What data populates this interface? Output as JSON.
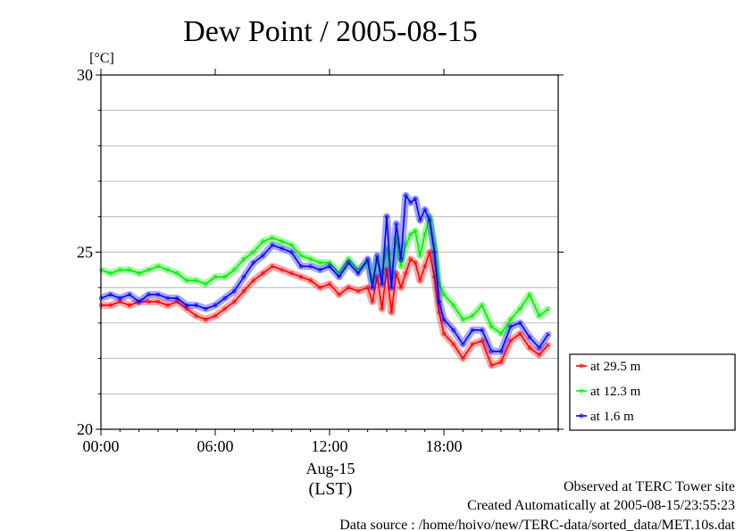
{
  "chart_data": {
    "type": "line",
    "title": "Dew Point / 2005-08-15",
    "ylabel": "[°C]",
    "xlabel": "(LST)",
    "date_label": "Aug-15",
    "ylim": [
      20,
      30
    ],
    "y_ticks": [
      "20",
      "25",
      "30"
    ],
    "x_range_hours": [
      0,
      24
    ],
    "x_ticks": [
      "00:00",
      "06:00",
      "12:00",
      "18:00"
    ],
    "grid": "horizontal",
    "legend_placement": "right",
    "series": [
      {
        "name": "at 29.5 m",
        "color": "#ff0000",
        "x": [
          0,
          0.5,
          1,
          1.5,
          2,
          2.5,
          3,
          3.5,
          4,
          4.5,
          5,
          5.5,
          6,
          6.5,
          7,
          7.5,
          8,
          8.5,
          9,
          9.5,
          10,
          10.5,
          11,
          11.5,
          12,
          12.5,
          13,
          13.5,
          14,
          14.25,
          14.5,
          14.75,
          15,
          15.25,
          15.5,
          15.75,
          16,
          16.25,
          16.5,
          16.75,
          17,
          17.25,
          17.5,
          17.75,
          18,
          18.5,
          19,
          19.5,
          20,
          20.5,
          21,
          21.5,
          22,
          22.5,
          23,
          23.5
        ],
        "values": [
          23.5,
          23.5,
          23.6,
          23.5,
          23.6,
          23.6,
          23.6,
          23.5,
          23.6,
          23.4,
          23.2,
          23.1,
          23.2,
          23.4,
          23.6,
          23.9,
          24.2,
          24.4,
          24.6,
          24.5,
          24.4,
          24.3,
          24.2,
          24.0,
          24.1,
          23.8,
          24.0,
          23.9,
          24.0,
          23.6,
          24.3,
          23.4,
          24.5,
          23.3,
          24.4,
          24.0,
          24.4,
          24.8,
          24.7,
          24.2,
          24.6,
          25.0,
          24.3,
          23.3,
          22.7,
          22.4,
          22.0,
          22.4,
          22.5,
          21.8,
          21.9,
          22.5,
          22.7,
          22.3,
          22.1,
          22.4
        ]
      },
      {
        "name": "at 12.3 m",
        "color": "#00ee00",
        "x": [
          0,
          0.5,
          1,
          1.5,
          2,
          2.5,
          3,
          3.5,
          4,
          4.5,
          5,
          5.5,
          6,
          6.5,
          7,
          7.5,
          8,
          8.5,
          9,
          9.5,
          10,
          10.5,
          11,
          11.5,
          12,
          12.5,
          13,
          13.5,
          14,
          14.25,
          14.5,
          14.75,
          15,
          15.25,
          15.5,
          15.75,
          16,
          16.25,
          16.5,
          16.75,
          17,
          17.25,
          17.5,
          17.75,
          18,
          18.5,
          19,
          19.5,
          20,
          20.5,
          21,
          21.5,
          22,
          22.5,
          23,
          23.5
        ],
        "values": [
          24.5,
          24.4,
          24.5,
          24.5,
          24.4,
          24.5,
          24.6,
          24.5,
          24.4,
          24.2,
          24.2,
          24.1,
          24.3,
          24.3,
          24.5,
          24.8,
          25.0,
          25.3,
          25.4,
          25.3,
          25.2,
          24.9,
          24.8,
          24.7,
          24.7,
          24.4,
          24.8,
          24.5,
          24.7,
          24.2,
          24.8,
          24.4,
          25.1,
          24.3,
          25.4,
          24.6,
          25.2,
          25.5,
          25.6,
          24.9,
          25.5,
          26.0,
          25.2,
          24.1,
          23.8,
          23.5,
          23.1,
          23.2,
          23.5,
          22.9,
          22.7,
          23.1,
          23.4,
          23.8,
          23.2,
          23.4
        ]
      },
      {
        "name": "at 1.6 m",
        "color": "#0000ff",
        "x": [
          0,
          0.5,
          1,
          1.5,
          2,
          2.5,
          3,
          3.5,
          4,
          4.5,
          5,
          5.5,
          6,
          6.5,
          7,
          7.5,
          8,
          8.5,
          9,
          9.5,
          10,
          10.5,
          11,
          11.5,
          12,
          12.5,
          13,
          13.5,
          14,
          14.25,
          14.5,
          14.75,
          15,
          15.25,
          15.5,
          15.75,
          16,
          16.25,
          16.5,
          16.75,
          17,
          17.25,
          17.5,
          17.75,
          18,
          18.5,
          19,
          19.5,
          20,
          20.5,
          21,
          21.5,
          22,
          22.5,
          23,
          23.5
        ],
        "values": [
          23.7,
          23.8,
          23.7,
          23.8,
          23.6,
          23.8,
          23.8,
          23.7,
          23.7,
          23.5,
          23.5,
          23.4,
          23.5,
          23.7,
          23.9,
          24.3,
          24.7,
          24.9,
          25.2,
          25.1,
          25.0,
          24.6,
          24.6,
          24.5,
          24.6,
          24.3,
          24.7,
          24.4,
          24.8,
          24.0,
          24.9,
          24.1,
          26.0,
          24.0,
          25.8,
          24.8,
          26.6,
          26.4,
          26.5,
          25.9,
          26.2,
          25.9,
          25.0,
          23.6,
          23.1,
          22.8,
          22.4,
          22.8,
          22.8,
          22.2,
          22.2,
          22.9,
          23.0,
          22.6,
          22.3,
          22.7
        ]
      }
    ]
  },
  "footer": {
    "line1": "Observed at TERC Tower site",
    "line2": "Created Automatically at 2005-08-15/23:55:23",
    "line3": "Data source : /home/hoivo/new/TERC-data/sorted_data/MET.10s.dat"
  }
}
